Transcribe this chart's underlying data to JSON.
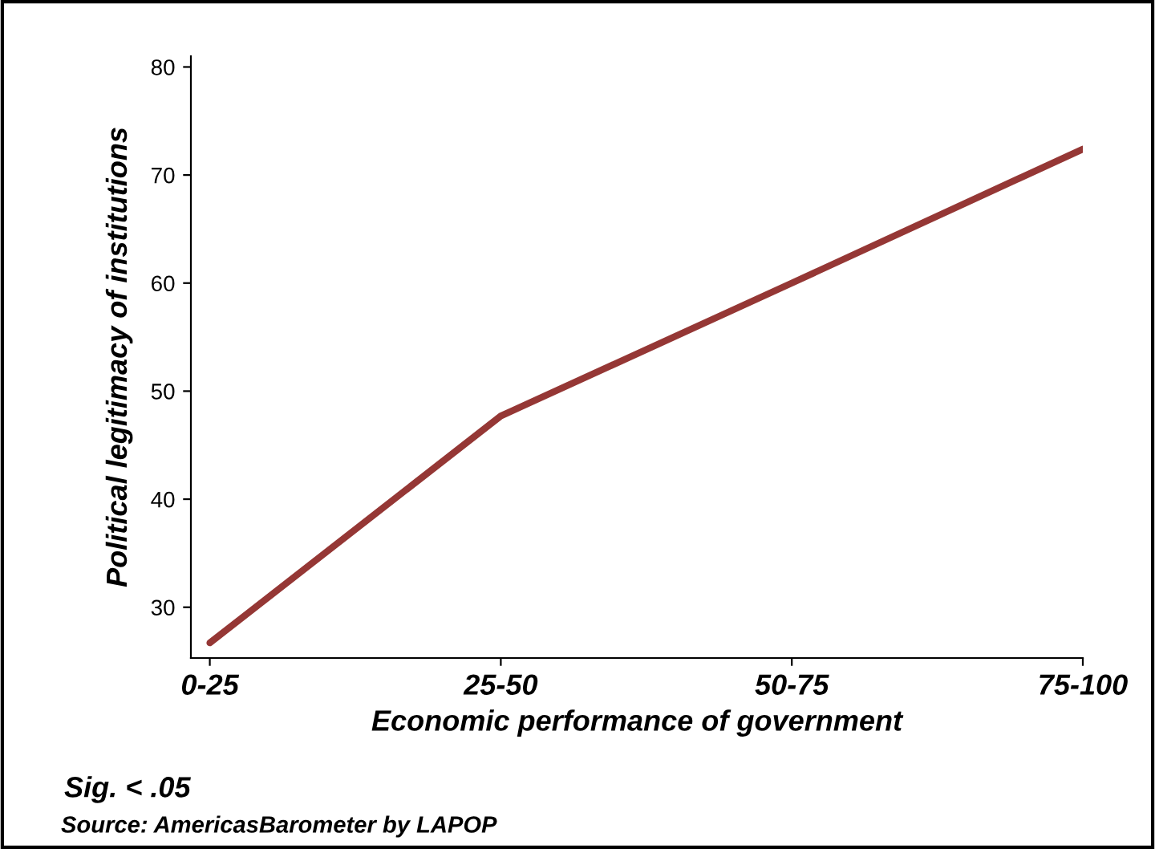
{
  "chart_data": {
    "type": "line",
    "xlabel": "Economic performance of government",
    "ylabel": "Political legitimacy of institutions",
    "categories": [
      "0-25",
      "25-50",
      "50-75",
      "75-100"
    ],
    "series": [
      {
        "color": "#953735",
        "values": [
          26.7,
          47.7,
          60.0,
          72.4
        ]
      }
    ],
    "ylim": [
      25.3,
      81
    ],
    "yticks": [
      30,
      40,
      50,
      60,
      70,
      80
    ],
    "grid": false,
    "legend": false,
    "marker": "none",
    "line_style": "solid",
    "annotations": [
      "Sig. < .05",
      "Source: AmericasBarometer by LAPOP"
    ]
  }
}
